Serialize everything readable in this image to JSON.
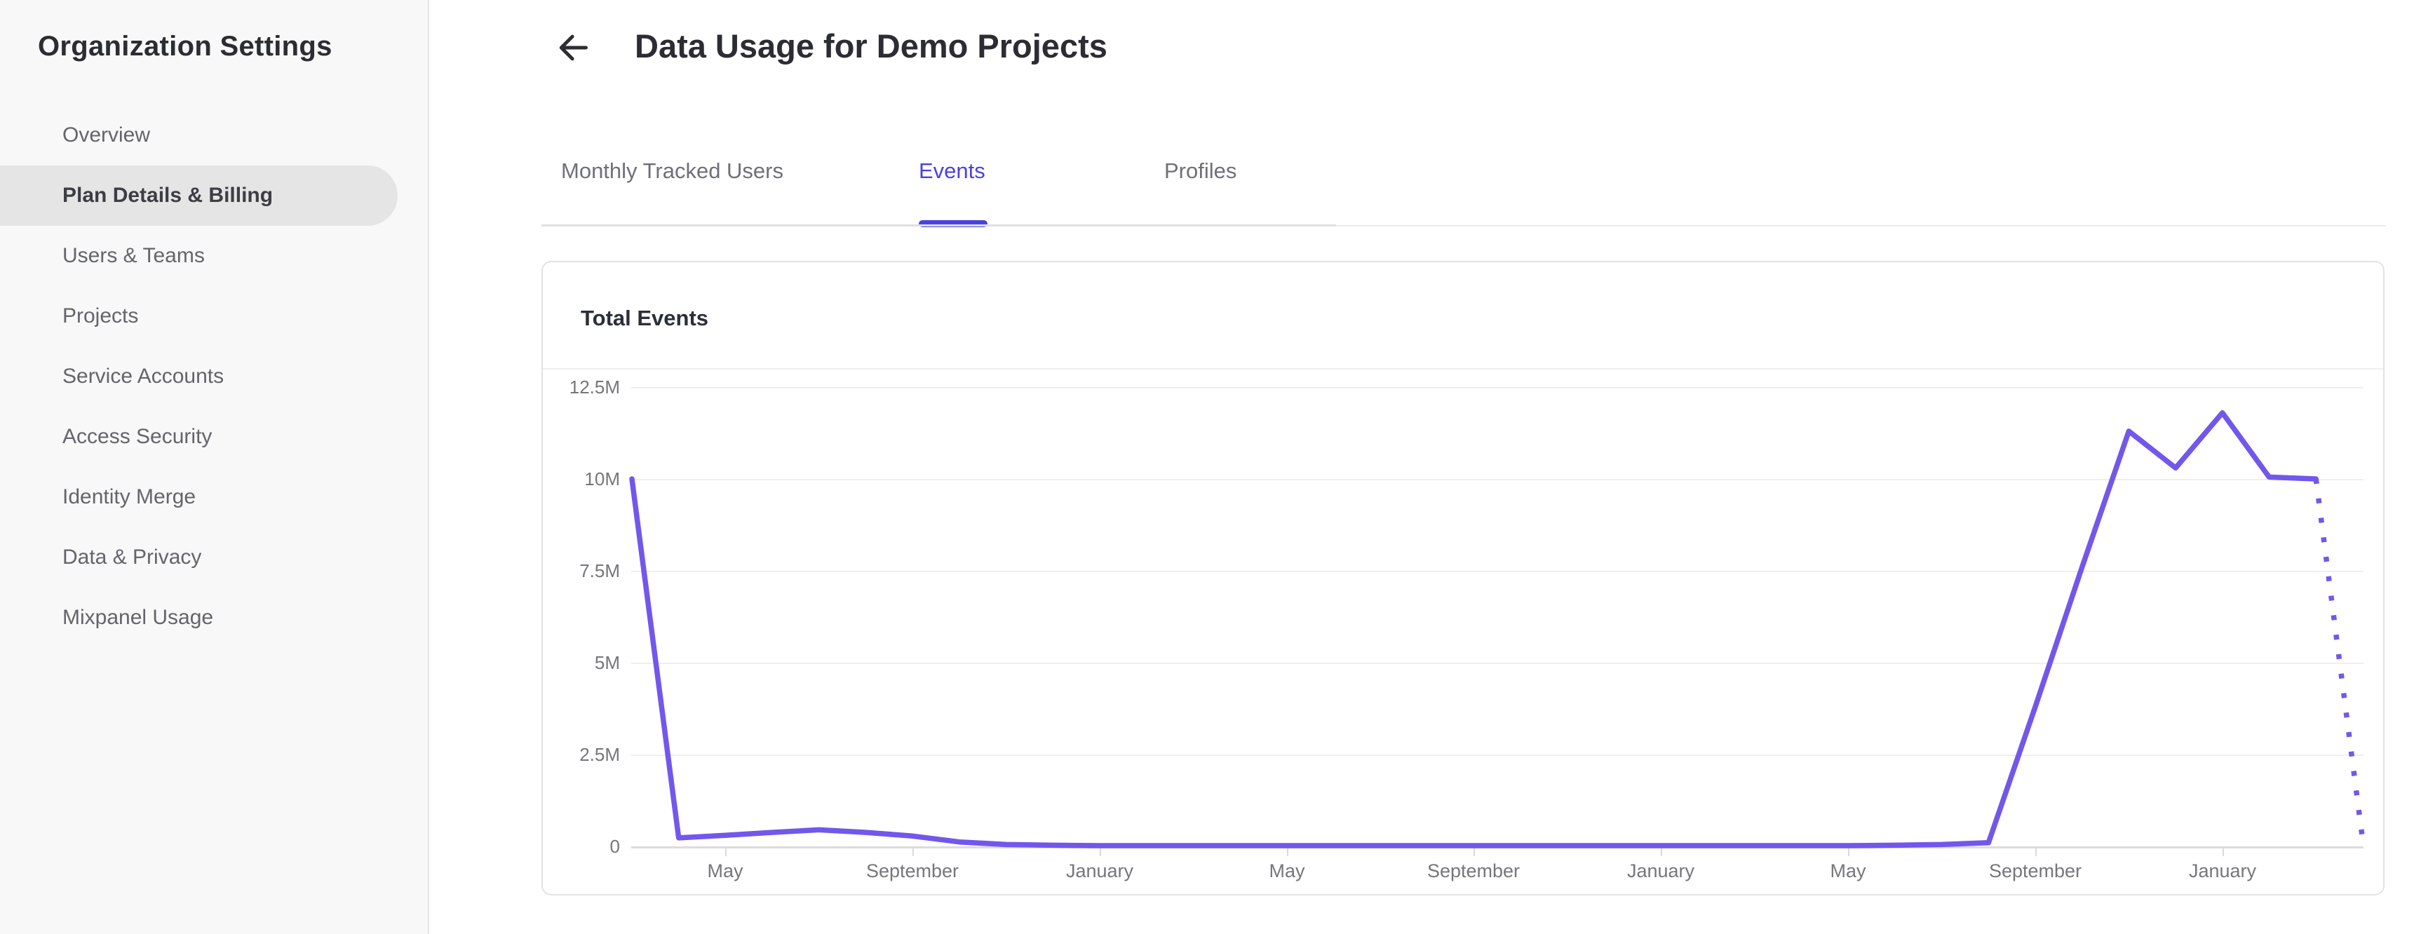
{
  "sidebar": {
    "title": "Organization Settings",
    "items": [
      {
        "label": "Overview",
        "active": false
      },
      {
        "label": "Plan Details & Billing",
        "active": true
      },
      {
        "label": "Users & Teams",
        "active": false
      },
      {
        "label": "Projects",
        "active": false
      },
      {
        "label": "Service Accounts",
        "active": false
      },
      {
        "label": "Access Security",
        "active": false
      },
      {
        "label": "Identity Merge",
        "active": false
      },
      {
        "label": "Data & Privacy",
        "active": false
      },
      {
        "label": "Mixpanel Usage",
        "active": false
      }
    ]
  },
  "header": {
    "title": "Data Usage for Demo Projects"
  },
  "tabs": [
    {
      "label": "Monthly Tracked Users",
      "active": false
    },
    {
      "label": "Events",
      "active": true
    },
    {
      "label": "Profiles",
      "active": false
    }
  ],
  "card": {
    "title": "Total Events"
  },
  "chart_data": {
    "type": "line",
    "title": "Total Events",
    "x_start_month": "March",
    "months_per_point": 1,
    "series": [
      {
        "name": "Total Events",
        "values_millions": [
          10,
          0.23,
          0.3,
          0.38,
          0.45,
          0.38,
          0.28,
          0.12,
          0.05,
          0.03,
          0.02,
          0.02,
          0.02,
          0.02,
          0.02,
          0.02,
          0.02,
          0.02,
          0.02,
          0.02,
          0.02,
          0.02,
          0.02,
          0.02,
          0.02,
          0.02,
          0.02,
          0.03,
          0.05,
          0.1,
          3.8,
          7.6,
          11.3,
          10.3,
          11.8,
          10.05,
          10,
          0.15
        ]
      }
    ],
    "x_tick_labels": [
      "May",
      "September",
      "January",
      "May",
      "September",
      "January",
      "May",
      "September",
      "January"
    ],
    "x_tick_point_indices": [
      2,
      6,
      10,
      14,
      18,
      22,
      26,
      30,
      34
    ],
    "y_tick_labels": [
      "0",
      "2.5M",
      "5M",
      "7.5M",
      "10M",
      "12.5M"
    ],
    "y_tick_values_millions": [
      0,
      2.5,
      5,
      7.5,
      10,
      12.5
    ],
    "ylim_millions": [
      0,
      13
    ],
    "grid": "horizontal",
    "legend": "none",
    "line_color": "#7257ec",
    "last_segment_style": "dotted"
  },
  "colors": {
    "accent": "#4b42de",
    "chart_line": "#7257ec",
    "sidebar_bg": "#f8f8f8",
    "active_pill": "#e5e5e5"
  }
}
